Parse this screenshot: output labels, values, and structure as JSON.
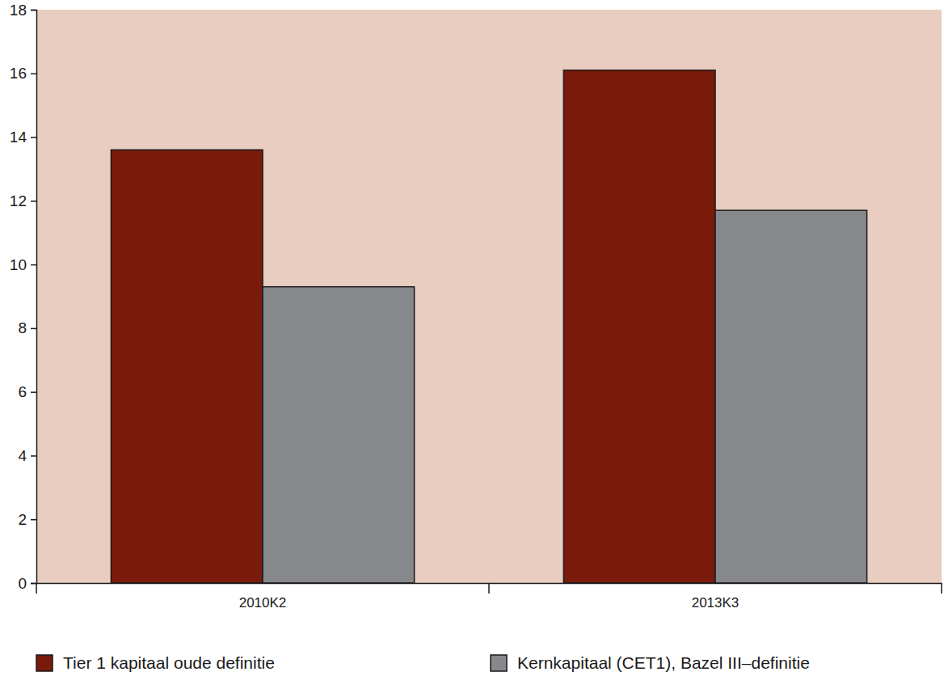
{
  "chart_data": {
    "type": "bar",
    "categories": [
      "2010K2",
      "2013K3"
    ],
    "series": [
      {
        "name": "Tier 1 kapitaal oude definitie",
        "color": "#7a1a0a",
        "values": [
          13.6,
          16.1
        ]
      },
      {
        "name": "Kernkapitaal (CET1), Bazel III–definitie",
        "color": "#87888c",
        "values": [
          9.3,
          11.7
        ]
      }
    ],
    "ylim": [
      0,
      18
    ],
    "yticks": [
      0,
      2,
      4,
      6,
      8,
      10,
      12,
      14,
      16,
      18
    ],
    "legend": "bottom",
    "grid": false
  }
}
